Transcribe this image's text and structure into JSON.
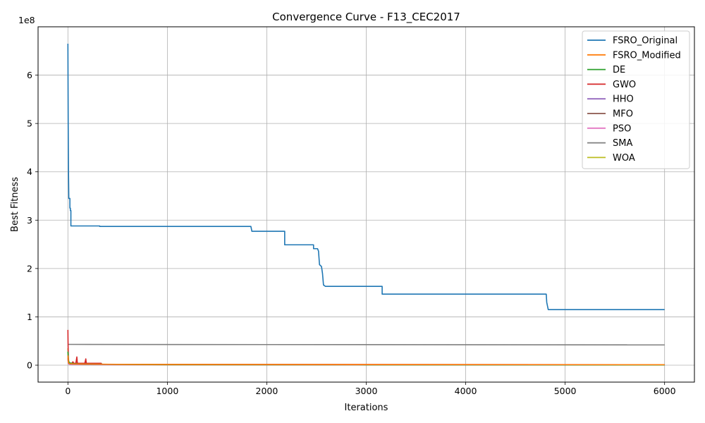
{
  "chart_data": {
    "type": "line",
    "title": "Convergence Curve - F13_CEC2017",
    "xlabel": "Iterations",
    "ylabel": "Best Fitness",
    "y_offset_text": "1e8",
    "xlim": [
      -300,
      6300
    ],
    "ylim": [
      -35000000,
      700000000
    ],
    "x_ticks": [
      0,
      1000,
      2000,
      3000,
      4000,
      5000,
      6000
    ],
    "x_tick_labels": [
      "0",
      "1000",
      "2000",
      "3000",
      "4000",
      "5000",
      "6000"
    ],
    "y_ticks": [
      0,
      100000000,
      200000000,
      300000000,
      400000000,
      500000000,
      600000000
    ],
    "y_tick_labels": [
      "0",
      "1",
      "2",
      "3",
      "4",
      "5",
      "6"
    ],
    "grid": true,
    "legend_position": "top-right",
    "series": [
      {
        "name": "FSRO_Original",
        "color": "#1f77b4",
        "points": [
          [
            0,
            665000000
          ],
          [
            3,
            500000000
          ],
          [
            6,
            400000000
          ],
          [
            9,
            345000000
          ],
          [
            20,
            345000000
          ],
          [
            20,
            325000000
          ],
          [
            25,
            325000000
          ],
          [
            25,
            320000000
          ],
          [
            30,
            320000000
          ],
          [
            30,
            288000000
          ],
          [
            320,
            288000000
          ],
          [
            320,
            287000000
          ],
          [
            1840,
            287000000
          ],
          [
            1850,
            277000000
          ],
          [
            2180,
            277000000
          ],
          [
            2180,
            249000000
          ],
          [
            2470,
            249000000
          ],
          [
            2470,
            241000000
          ],
          [
            2510,
            241000000
          ],
          [
            2520,
            236000000
          ],
          [
            2530,
            208000000
          ],
          [
            2550,
            204000000
          ],
          [
            2560,
            190000000
          ],
          [
            2570,
            166000000
          ],
          [
            2590,
            163000000
          ],
          [
            3160,
            163000000
          ],
          [
            3160,
            147000000
          ],
          [
            4810,
            147000000
          ],
          [
            4815,
            130000000
          ],
          [
            4830,
            115000000
          ],
          [
            6000,
            115000000
          ]
        ]
      },
      {
        "name": "FSRO_Modified",
        "color": "#ff7f0e",
        "points": [
          [
            0,
            20000000
          ],
          [
            5,
            5000000
          ],
          [
            15,
            3000000
          ],
          [
            60,
            2500000
          ],
          [
            200,
            2200000
          ],
          [
            500,
            1800000
          ],
          [
            1000,
            1500000
          ],
          [
            3000,
            1200000
          ],
          [
            6000,
            1000000
          ]
        ]
      },
      {
        "name": "DE",
        "color": "#2ca02c",
        "points": [
          [
            0,
            28000000
          ],
          [
            5,
            10000000
          ],
          [
            15,
            5000000
          ],
          [
            60,
            3000000
          ],
          [
            150,
            2200000
          ],
          [
            500,
            1500000
          ],
          [
            1000,
            1000000
          ],
          [
            3000,
            700000
          ],
          [
            6000,
            500000
          ]
        ]
      },
      {
        "name": "GWO",
        "color": "#d62728",
        "points": [
          [
            0,
            73000000
          ],
          [
            2,
            40000000
          ],
          [
            5,
            15000000
          ],
          [
            10,
            4000000
          ],
          [
            40,
            4000000
          ],
          [
            50,
            7000000
          ],
          [
            60,
            4000000
          ],
          [
            80,
            4000000
          ],
          [
            90,
            17000000
          ],
          [
            95,
            4000000
          ],
          [
            170,
            4000000
          ],
          [
            180,
            13000000
          ],
          [
            185,
            4000000
          ],
          [
            330,
            4000000
          ],
          [
            340,
            2000000
          ],
          [
            1000,
            1500000
          ],
          [
            6000,
            1000000
          ]
        ]
      },
      {
        "name": "HHO",
        "color": "#9467bd",
        "points": [
          [
            0,
            20000000
          ],
          [
            5,
            4000000
          ],
          [
            20,
            2000000
          ],
          [
            200,
            1500000
          ],
          [
            1000,
            1200000
          ],
          [
            6000,
            900000
          ]
        ]
      },
      {
        "name": "MFO",
        "color": "#8c564b",
        "points": [
          [
            0,
            15000000
          ],
          [
            5,
            5000000
          ],
          [
            20,
            4000000
          ],
          [
            335,
            4000000
          ],
          [
            340,
            2000000
          ],
          [
            1000,
            1500000
          ],
          [
            3000,
            1200000
          ],
          [
            6000,
            1000000
          ]
        ]
      },
      {
        "name": "PSO",
        "color": "#e377c2",
        "points": [
          [
            0,
            12000000
          ],
          [
            5,
            3000000
          ],
          [
            20,
            1500000
          ],
          [
            500,
            800000
          ],
          [
            3000,
            500000
          ],
          [
            6000,
            400000
          ]
        ]
      },
      {
        "name": "SMA",
        "color": "#7f7f7f",
        "points": [
          [
            0,
            43000000
          ],
          [
            6000,
            42000000
          ]
        ]
      },
      {
        "name": "WOA",
        "color": "#bcbd22",
        "points": [
          [
            0,
            35000000
          ],
          [
            3,
            15000000
          ],
          [
            8,
            5000000
          ],
          [
            20,
            2000000
          ],
          [
            300,
            1200000
          ],
          [
            1000,
            800000
          ],
          [
            6000,
            500000
          ]
        ]
      }
    ]
  }
}
